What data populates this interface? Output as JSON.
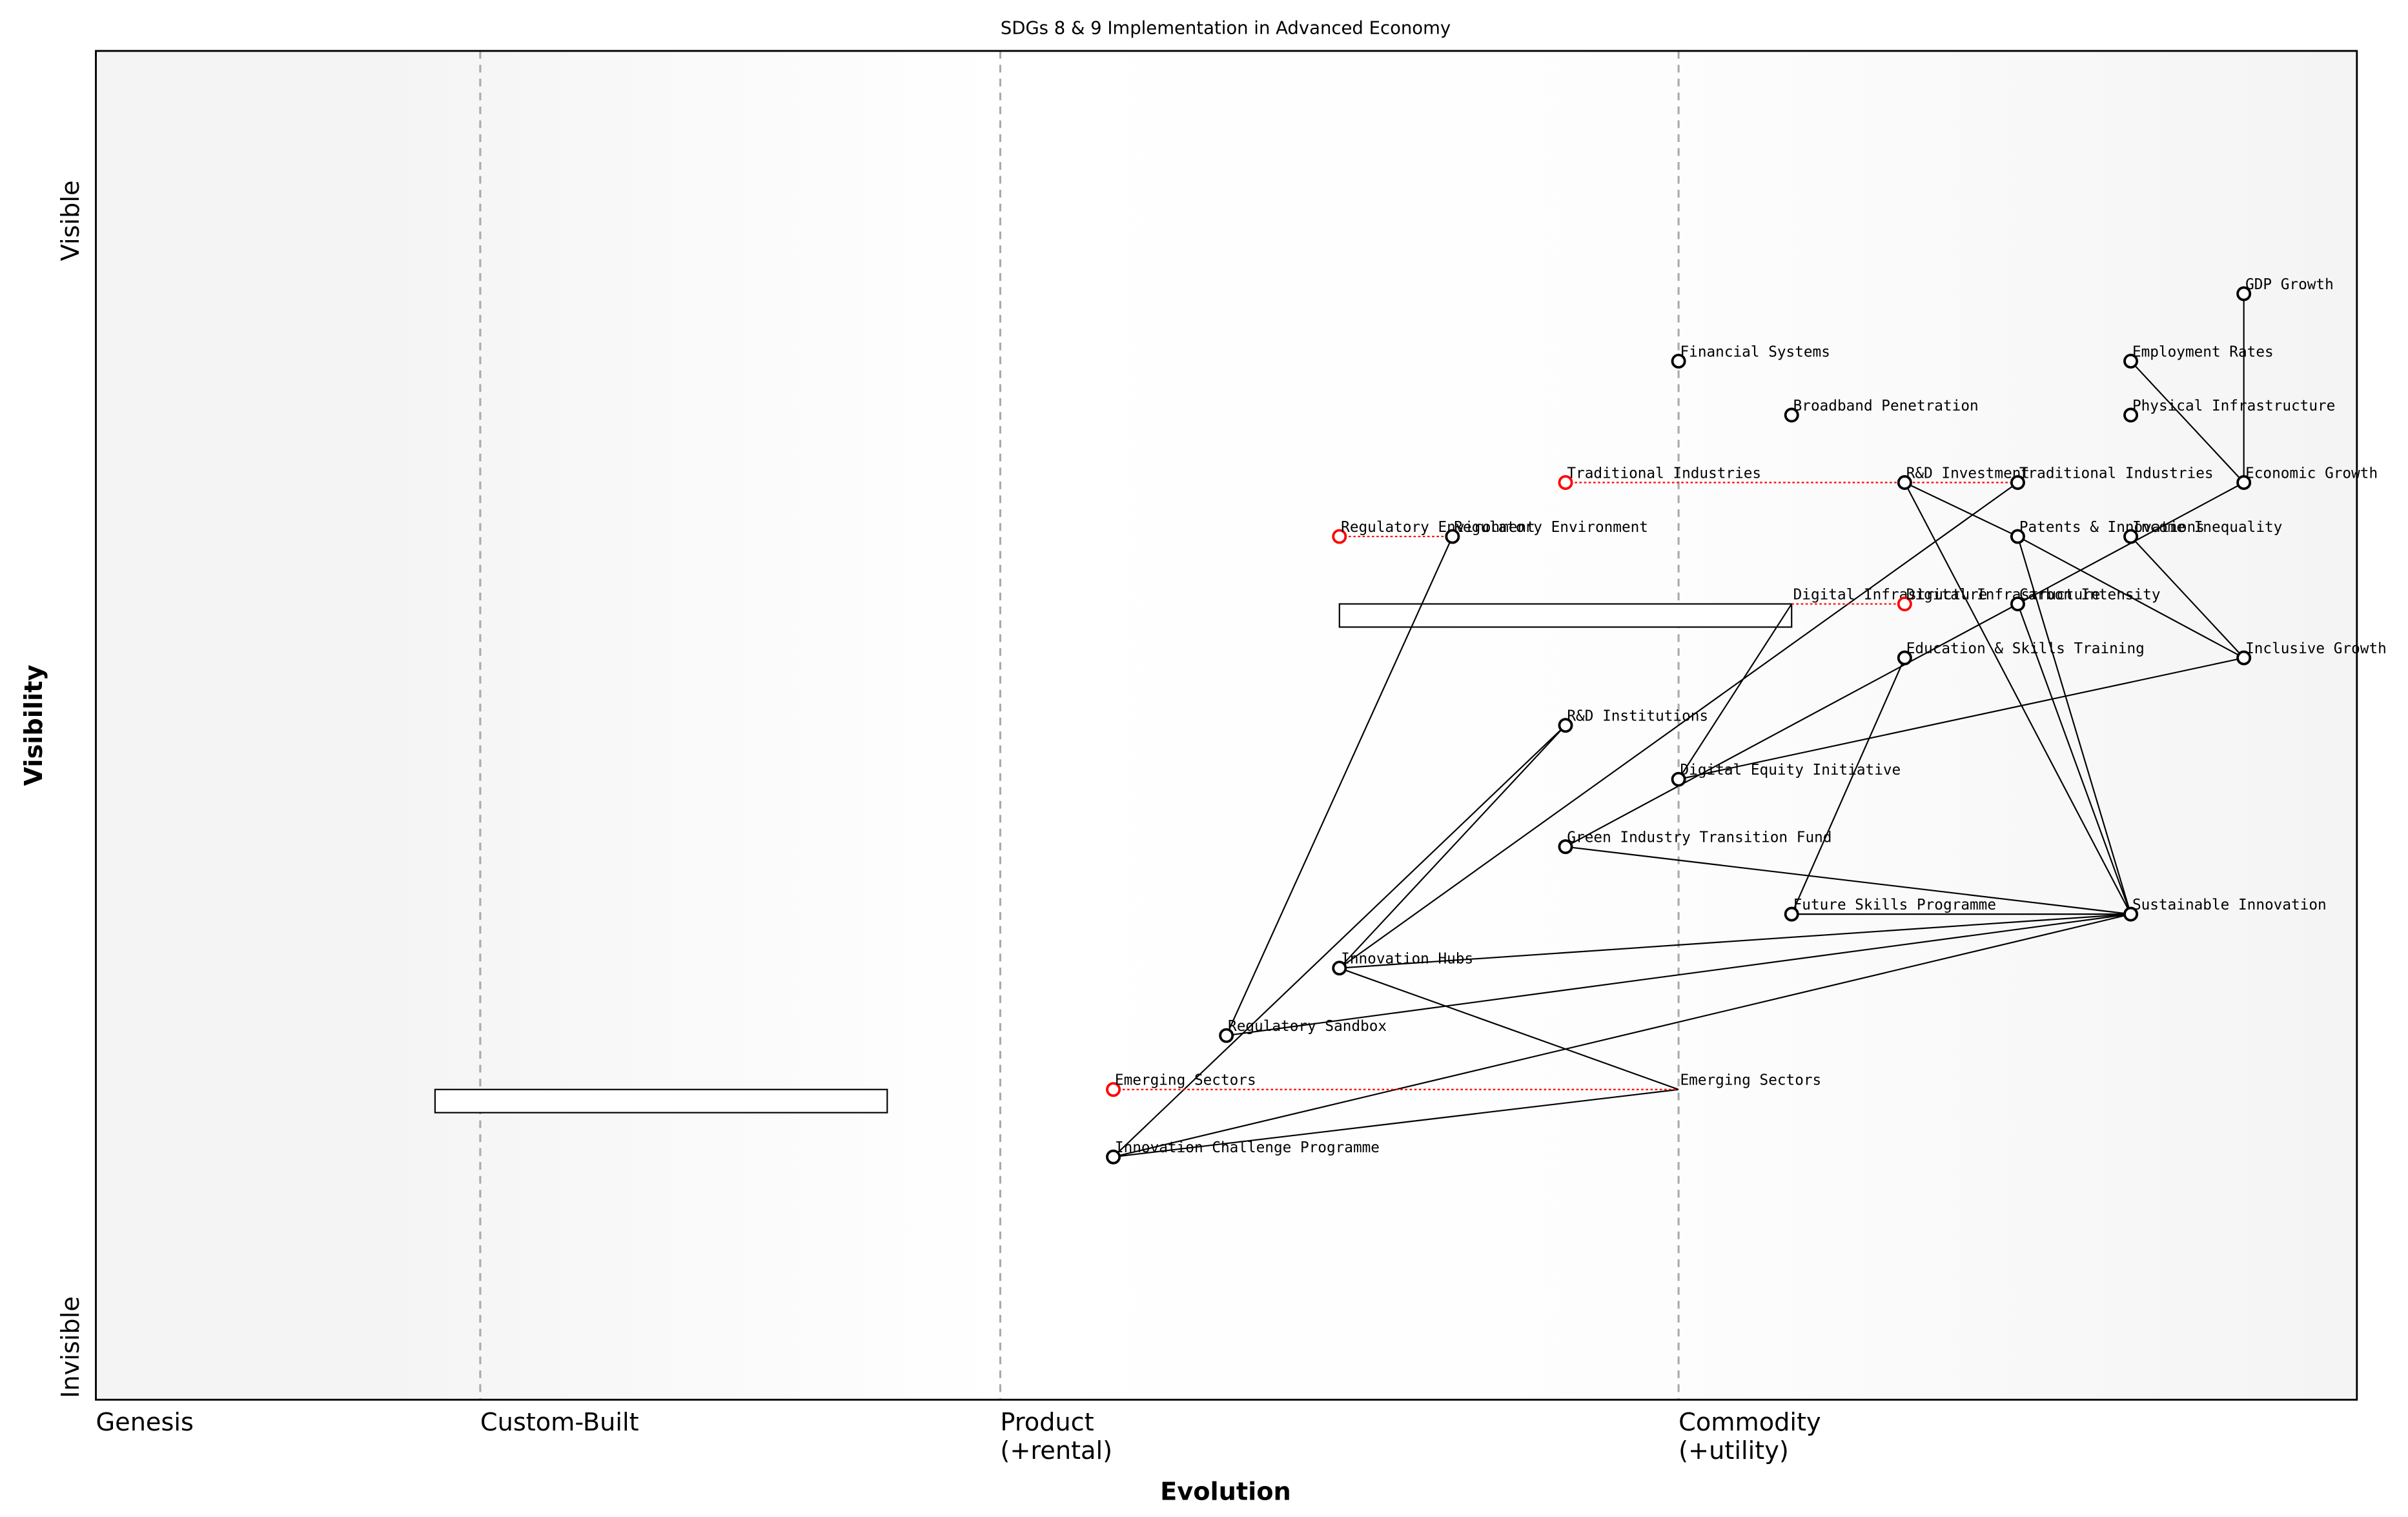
{
  "chart_data": {
    "type": "wardley",
    "title": "SDGs 8 & 9 Implementation in Advanced Economy",
    "x_label": "Evolution",
    "y_label": "Visibility",
    "y_top_label": "Visible",
    "y_bottom_label": "Invisible",
    "xlim": [
      0,
      1
    ],
    "ylim": [
      0,
      1
    ],
    "xticks": [
      {
        "value": 0,
        "label": "Genesis"
      },
      {
        "value": 0.17,
        "label": "Custom-Built"
      },
      {
        "value": 0.4,
        "label": "Product\n(+rental)"
      },
      {
        "value": 0.7,
        "label": "Commodity\n(+utility)"
      }
    ],
    "grid": true,
    "nodes": [
      {
        "label": "GDP Growth",
        "x": 0.95,
        "y": 0.82,
        "color": "black"
      },
      {
        "label": "Employment Rates",
        "x": 0.9,
        "y": 0.77,
        "color": "black"
      },
      {
        "label": "Financial Systems",
        "x": 0.7,
        "y": 0.77,
        "color": "black"
      },
      {
        "label": "Broadband Penetration",
        "x": 0.75,
        "y": 0.73,
        "color": "black"
      },
      {
        "label": "Physical Infrastructure",
        "x": 0.9,
        "y": 0.73,
        "color": "black"
      },
      {
        "label": "Traditional Industries",
        "x": 0.65,
        "y": 0.68,
        "color": "red"
      },
      {
        "label": "R&D Investment",
        "x": 0.8,
        "y": 0.68,
        "color": "black"
      },
      {
        "label": "Traditional Industries",
        "x": 0.85,
        "y": 0.68,
        "color": "black"
      },
      {
        "label": "Economic Growth",
        "x": 0.95,
        "y": 0.68,
        "color": "black"
      },
      {
        "label": "Regulatory Environment",
        "x": 0.55,
        "y": 0.64,
        "color": "red"
      },
      {
        "label": "Regulatory Environment",
        "x": 0.6,
        "y": 0.64,
        "color": "black"
      },
      {
        "label": "Patents & Innovations",
        "x": 0.85,
        "y": 0.64,
        "color": "black"
      },
      {
        "label": "Income Inequality",
        "x": 0.9,
        "y": 0.64,
        "color": "black"
      },
      {
        "label": "Digital Infrastructure",
        "x": 0.75,
        "y": 0.59,
        "color": "none"
      },
      {
        "label": "Digital Infrastructure",
        "x": 0.8,
        "y": 0.59,
        "color": "red"
      },
      {
        "label": "Carbon Intensity",
        "x": 0.85,
        "y": 0.59,
        "color": "black"
      },
      {
        "label": "Education & Skills Training",
        "x": 0.8,
        "y": 0.55,
        "color": "black"
      },
      {
        "label": "Inclusive Growth",
        "x": 0.95,
        "y": 0.55,
        "color": "black"
      },
      {
        "label": "R&D Institutions",
        "x": 0.65,
        "y": 0.5,
        "color": "black"
      },
      {
        "label": "Digital Equity Initiative",
        "x": 0.7,
        "y": 0.46,
        "color": "black"
      },
      {
        "label": "Green Industry Transition Fund",
        "x": 0.65,
        "y": 0.41,
        "color": "black"
      },
      {
        "label": "Future Skills Programme",
        "x": 0.75,
        "y": 0.36,
        "color": "black"
      },
      {
        "label": "Sustainable Innovation",
        "x": 0.9,
        "y": 0.36,
        "color": "black"
      },
      {
        "label": "Innovation Hubs",
        "x": 0.55,
        "y": 0.32,
        "color": "black"
      },
      {
        "label": "Regulatory Sandbox",
        "x": 0.5,
        "y": 0.27,
        "color": "black"
      },
      {
        "label": "Emerging Sectors",
        "x": 0.45,
        "y": 0.23,
        "color": "red"
      },
      {
        "label": "Emerging Sectors",
        "x": 0.7,
        "y": 0.23,
        "color": "none"
      },
      {
        "label": "Innovation Challenge Programme",
        "x": 0.45,
        "y": 0.18,
        "color": "black"
      }
    ],
    "edges": [
      [
        0,
        8
      ],
      [
        1,
        8
      ],
      [
        8,
        20
      ],
      [
        7,
        23
      ],
      [
        16,
        21
      ],
      [
        6,
        11
      ],
      [
        11,
        17
      ],
      [
        12,
        17
      ],
      [
        6,
        22
      ],
      [
        11,
        22
      ],
      [
        15,
        22
      ],
      [
        17,
        19
      ],
      [
        13,
        19
      ],
      [
        22,
        20
      ],
      [
        22,
        21
      ],
      [
        22,
        23
      ],
      [
        22,
        24
      ],
      [
        22,
        27
      ],
      [
        10,
        24
      ],
      [
        18,
        23
      ],
      [
        18,
        27
      ],
      [
        23,
        26
      ],
      [
        26,
        27
      ]
    ],
    "evolve": [
      [
        5,
        7
      ],
      [
        9,
        10
      ],
      [
        13,
        14
      ],
      [
        25,
        26
      ]
    ],
    "evolve_color": "red",
    "pipelines": [
      {
        "x": [
          0.55,
          0.75
        ],
        "y": 0.59
      },
      {
        "x": [
          0.15,
          0.35
        ],
        "y": 0.23
      }
    ]
  }
}
